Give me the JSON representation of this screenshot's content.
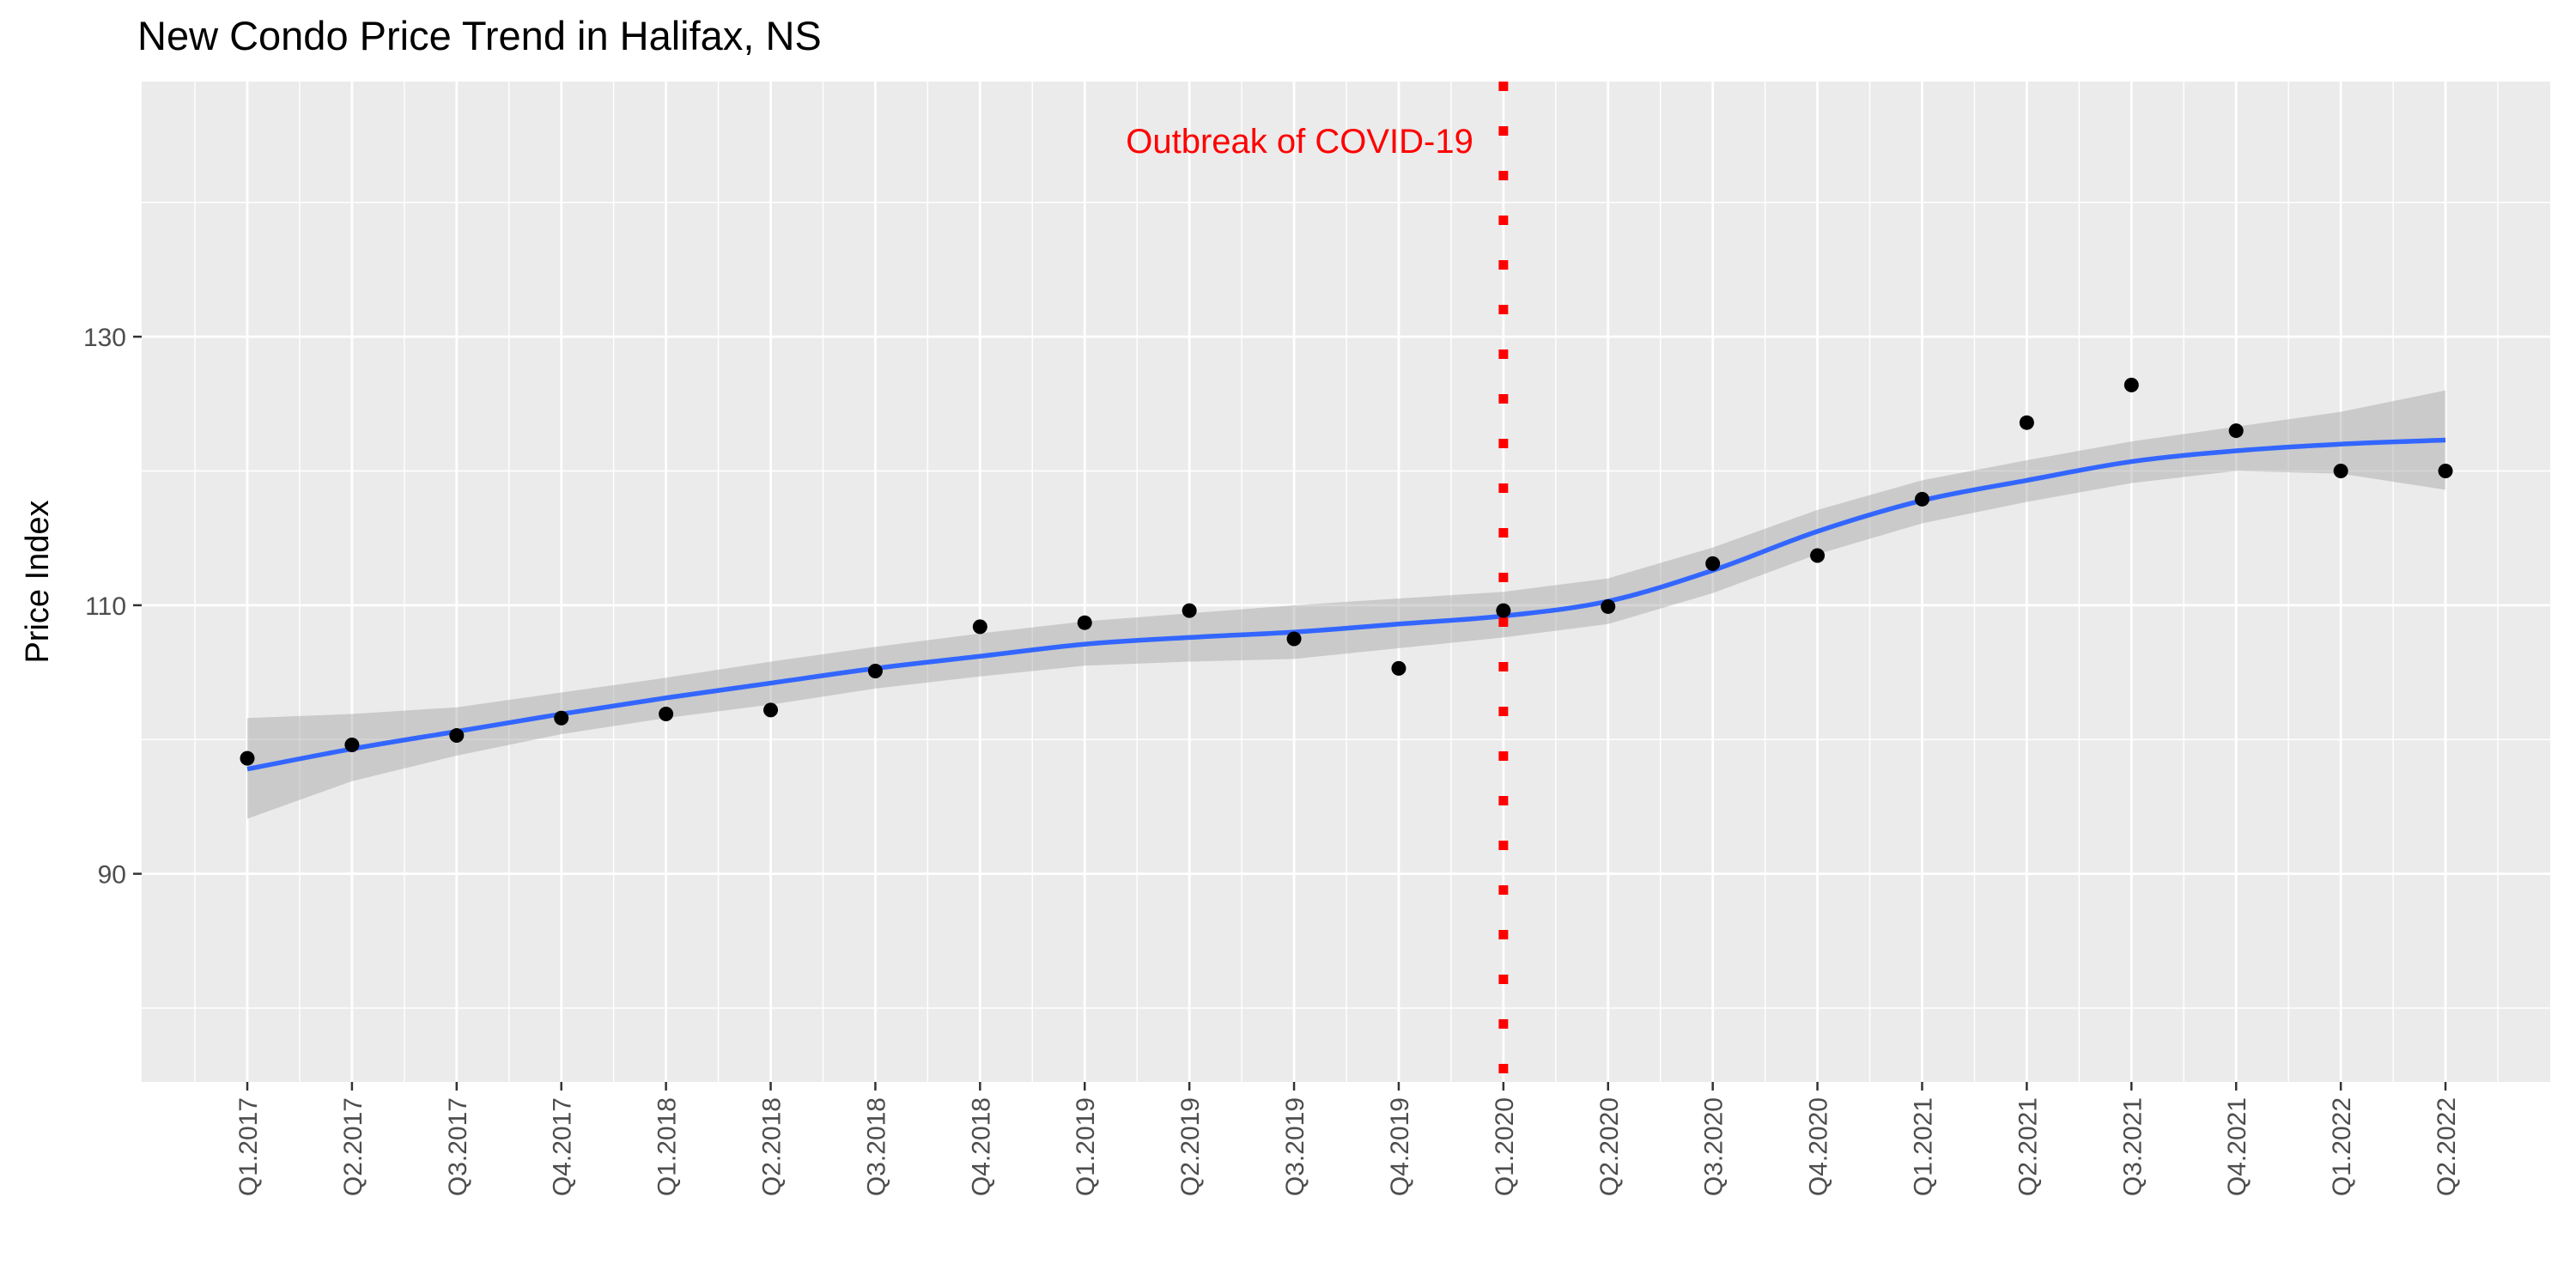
{
  "chart_data": {
    "type": "scatter",
    "title": "New Condo Price Trend in Halifax, NS",
    "xlabel": "",
    "ylabel": "Price Index",
    "x_tick_labels": [
      "Q1.2017",
      "Q2.2017",
      "Q3.2017",
      "Q4.2017",
      "Q1.2018",
      "Q2.2018",
      "Q3.2018",
      "Q4.2018",
      "Q1.2019",
      "Q2.2019",
      "Q3.2019",
      "Q4.2019",
      "Q1.2020",
      "Q2.2020",
      "Q3.2020",
      "Q4.2020",
      "Q1.2021",
      "Q2.2021",
      "Q3.2021",
      "Q4.2021",
      "Q1.2022",
      "Q2.2022"
    ],
    "y_ticks": [
      90,
      110,
      130
    ],
    "ylim": [
      74.5,
      149
    ],
    "grid": true,
    "points": {
      "x": [
        "Q1.2017",
        "Q2.2017",
        "Q3.2017",
        "Q4.2017",
        "Q1.2018",
        "Q2.2018",
        "Q3.2018",
        "Q4.2018",
        "Q1.2019",
        "Q2.2019",
        "Q3.2019",
        "Q4.2019",
        "Q1.2020",
        "Q2.2020",
        "Q3.2020",
        "Q4.2020",
        "Q1.2021",
        "Q2.2021",
        "Q3.2021",
        "Q4.2021",
        "Q1.2022",
        "Q2.2022"
      ],
      "y": [
        98.6,
        99.6,
        100.3,
        101.6,
        101.9,
        102.2,
        105.1,
        108.4,
        108.7,
        109.6,
        107.5,
        105.3,
        109.6,
        109.9,
        113.1,
        113.7,
        117.9,
        123.6,
        126.4,
        123.0,
        120.0,
        120.0
      ],
      "color": "#000000"
    },
    "smooth": {
      "method": "loess",
      "color": "#3366FF",
      "ribbon_color": "#999999",
      "y": [
        97.8,
        99.3,
        100.6,
        101.9,
        103.1,
        104.2,
        105.3,
        106.2,
        107.1,
        107.6,
        108.0,
        108.6,
        109.2,
        110.3,
        112.6,
        115.5,
        117.8,
        119.3,
        120.7,
        121.5,
        122.0,
        122.3
      ],
      "lower": [
        94.1,
        96.9,
        98.8,
        100.4,
        101.6,
        102.6,
        103.8,
        104.7,
        105.5,
        105.8,
        106.0,
        106.8,
        107.6,
        108.6,
        110.9,
        113.8,
        116.1,
        117.7,
        119.1,
        120.0,
        119.8,
        118.6
      ],
      "upper": [
        101.6,
        101.9,
        102.4,
        103.5,
        104.6,
        105.8,
        106.9,
        107.9,
        108.8,
        109.4,
        110.0,
        110.5,
        111.0,
        112.0,
        114.3,
        117.1,
        119.3,
        120.8,
        122.2,
        123.3,
        124.4,
        126.0
      ]
    },
    "annotation": {
      "text": "Outbreak of COVID-19",
      "x": "Q1.2020",
      "line_color": "#FF0000",
      "line_style": "dotted"
    }
  }
}
